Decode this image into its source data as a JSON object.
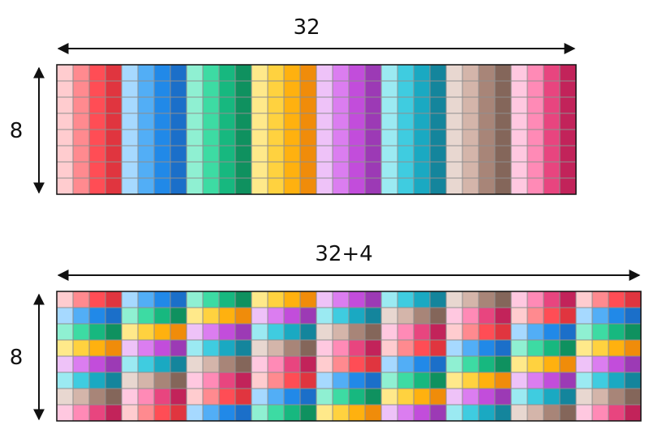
{
  "palette": [
    [
      "#ffcccf",
      "#ff8a8f",
      "#ff4d55",
      "#e0353f"
    ],
    [
      "#a6d9ff",
      "#52aef6",
      "#2189e8",
      "#1b6fc9"
    ],
    [
      "#8ff0d2",
      "#3ddba3",
      "#17b87f",
      "#0f915f"
    ],
    [
      "#ffe98a",
      "#ffd23f",
      "#ffb10f",
      "#f08c0a"
    ],
    [
      "#eec2f8",
      "#db7df0",
      "#c24ddb",
      "#9c3ab5"
    ],
    [
      "#9beaf2",
      "#3fcce0",
      "#1aa9c2",
      "#14859c"
    ],
    [
      "#e8d7d0",
      "#d4b5aa",
      "#a88578",
      "#84665a"
    ],
    [
      "#ffc8e0",
      "#ff8ab6",
      "#e8457f",
      "#c2235a"
    ]
  ],
  "top": {
    "width_label": "32",
    "height_label": "8",
    "rows": 8,
    "cols": 32,
    "offset": 0
  },
  "bottom": {
    "width_label": "32+4",
    "height_label": "8",
    "rows": 8,
    "cols": 36,
    "offset": 4
  }
}
